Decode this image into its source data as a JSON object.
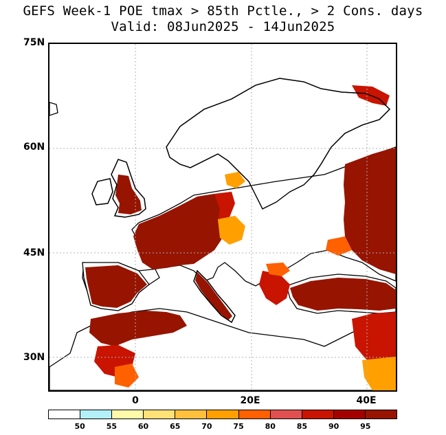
{
  "title": {
    "line1": "GEFS Week-1 POE tmax > 85th Pctle., > 2 Cons. days",
    "line2": "Valid: 08Jun2025 - 14Jun2025"
  },
  "axes": {
    "lat_labels": [
      "75N",
      "60N",
      "45N",
      "30N"
    ],
    "lon_labels": [
      "0",
      "20E",
      "40E"
    ]
  },
  "colorbar": {
    "colors": [
      "#ffffff",
      "#b4f0fa",
      "#fffaaa",
      "#ffe178",
      "#ffc03c",
      "#ffa000",
      "#ff6000",
      "#e15050",
      "#c81400",
      "#a50000",
      "#961400"
    ],
    "labels": [
      "50",
      "55",
      "60",
      "65",
      "70",
      "75",
      "80",
      "85",
      "90",
      "95"
    ]
  },
  "colors": {
    "very_high": "#961400",
    "high": "#c81400",
    "medium": "#ff6000",
    "low": "#ffa000",
    "light": "#ffe178",
    "cyan": "#b4f0fa"
  }
}
